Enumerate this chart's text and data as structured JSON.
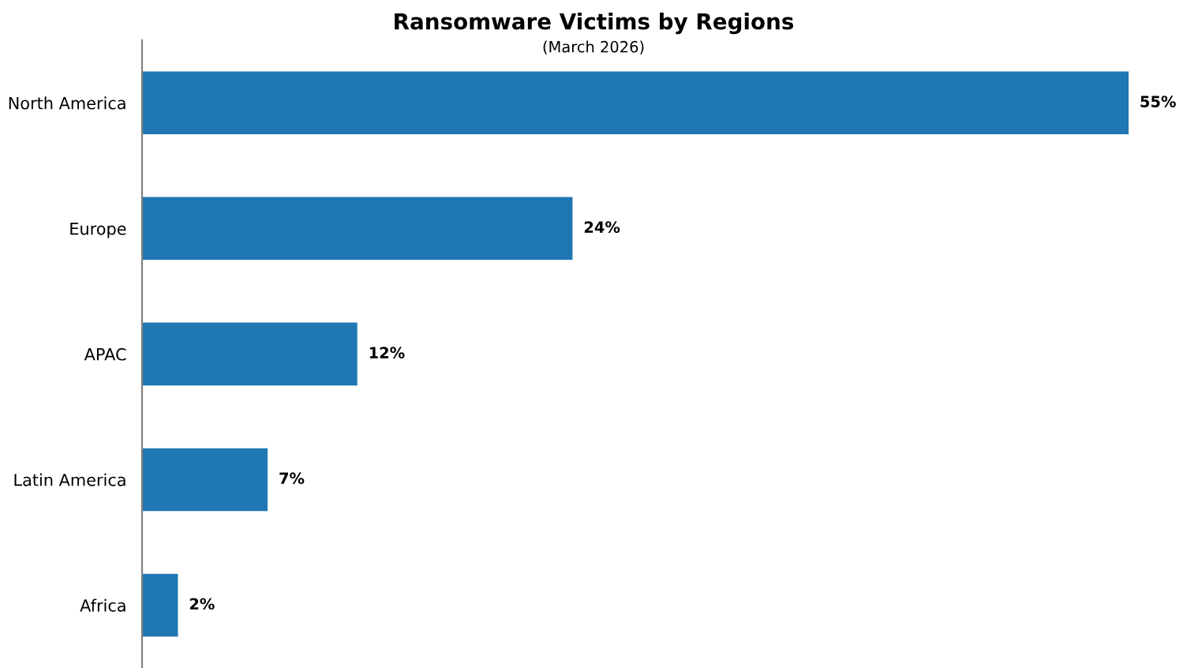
{
  "chart_data": {
    "type": "bar",
    "orientation": "horizontal",
    "title": "Ransomware Victims by Regions",
    "subtitle": "(March 2026)",
    "categories": [
      "North America",
      "Europe",
      "APAC",
      "Latin America",
      "Africa"
    ],
    "values": [
      55,
      24,
      12,
      7,
      2
    ],
    "value_labels": [
      "55%",
      "24%",
      "12%",
      "7%",
      "2%"
    ],
    "color": "#1f77b4",
    "tick_labels": "y",
    "grid": false,
    "legend": false
  }
}
